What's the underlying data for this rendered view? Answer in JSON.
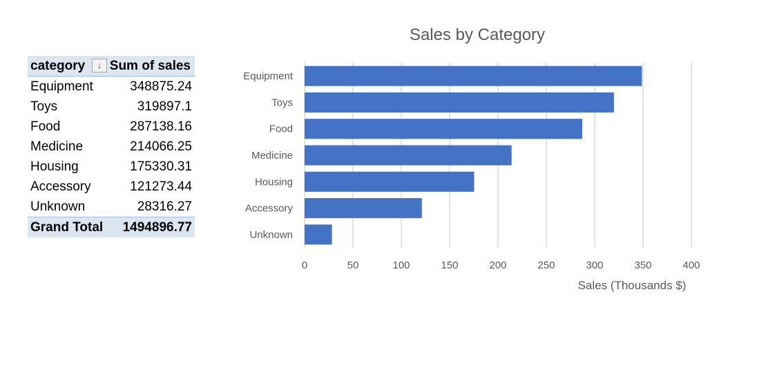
{
  "pivot": {
    "header": {
      "category": "category",
      "sum": "Sum of sales"
    },
    "rows": [
      {
        "category": "Equipment",
        "sales": "348875.24"
      },
      {
        "category": "Toys",
        "sales": "319897.1"
      },
      {
        "category": "Food",
        "sales": "287138.16"
      },
      {
        "category": "Medicine",
        "sales": "214066.25"
      },
      {
        "category": "Housing",
        "sales": "175330.31"
      },
      {
        "category": "Accessory",
        "sales": "121273.44"
      },
      {
        "category": "Unknown",
        "sales": "28316.27"
      }
    ],
    "total": {
      "label": "Grand Total",
      "value": "1494896.77"
    },
    "sort_icon": "sort-descending-icon"
  },
  "chart_data": {
    "type": "bar",
    "orientation": "horizontal",
    "title": "Sales by Category",
    "xlabel": "Sales (Thousands $)",
    "ylabel": "",
    "categories": [
      "Equipment",
      "Toys",
      "Food",
      "Medicine",
      "Housing",
      "Accessory",
      "Unknown"
    ],
    "values": [
      348.88,
      319.9,
      287.14,
      214.07,
      175.33,
      121.27,
      28.32
    ],
    "xlim": [
      0,
      400
    ],
    "xticks": [
      0,
      50,
      100,
      150,
      200,
      250,
      300,
      350,
      400
    ],
    "grid": "vertical",
    "bar_color": "#4472c4",
    "grid_color": "#d9d9d9",
    "legend": "none"
  }
}
